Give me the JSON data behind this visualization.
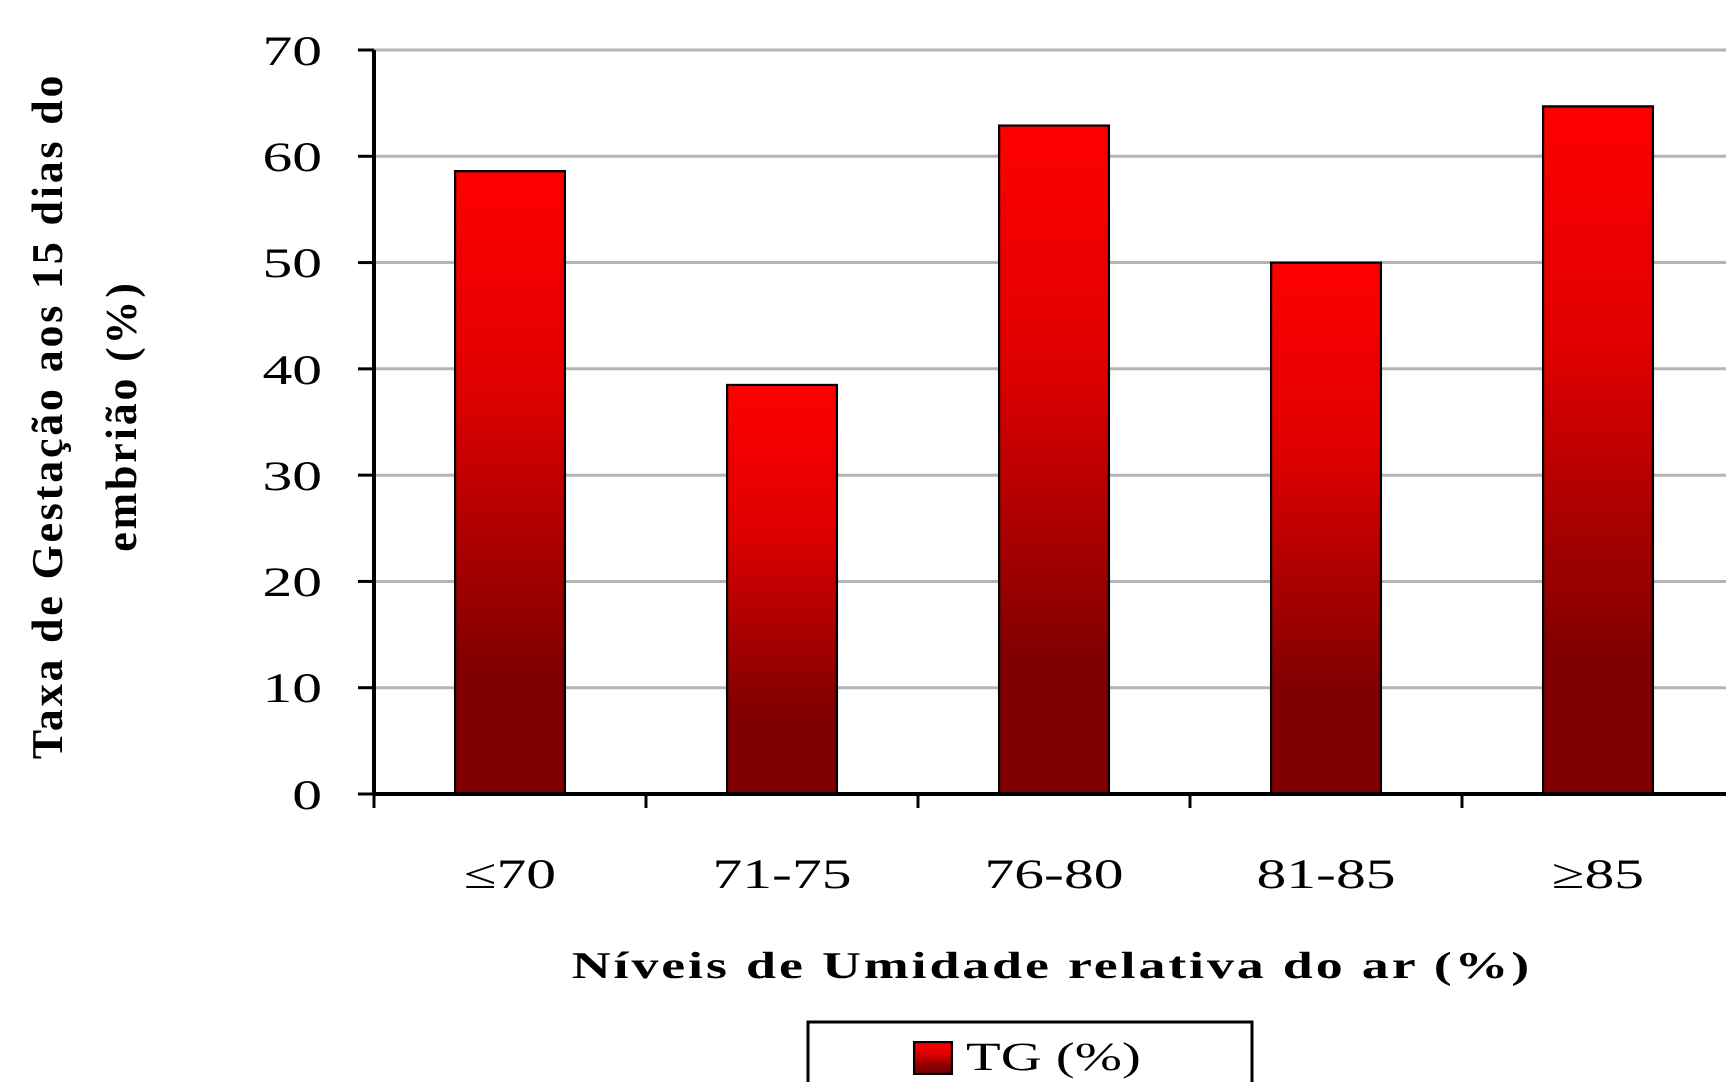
{
  "chart_data": {
    "type": "bar",
    "categories": [
      "≤70",
      "71-75",
      "76-80",
      "81-85",
      "≥85"
    ],
    "series": [
      {
        "name": "TG (%)",
        "color": "#ff0000",
        "values": [
          58.6,
          38.5,
          62.9,
          50,
          64.7
        ]
      }
    ],
    "xlabel": "Níveis de Umidade relativa do ar (%)",
    "ylabel": "Taxa de Gestação aos 15 dias do embrião (%)",
    "ylim": [
      0,
      70
    ],
    "yticks": [
      0,
      10,
      20,
      30,
      40,
      50,
      60,
      70
    ],
    "grid": "y",
    "legend": "bottom"
  }
}
